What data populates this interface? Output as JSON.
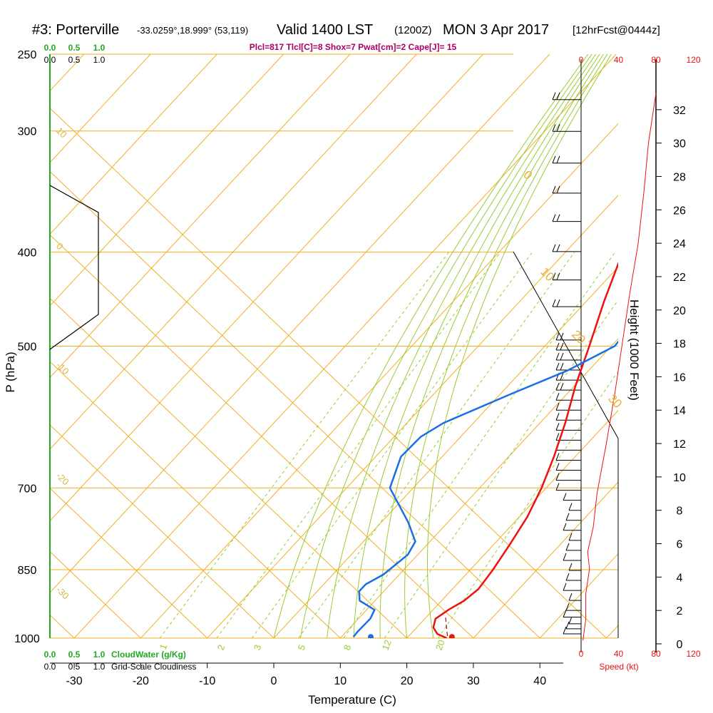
{
  "header": {
    "station": "#3: Porterville",
    "coords": "-33.0259°,18.999° (53,119)",
    "valid": "Valid 1400 LST",
    "zulu": "(1200Z)",
    "date": "MON 3 Apr 2017",
    "forecast": "[12hrFcst@0444z]",
    "params": "Plcl=817 Tlcl[C]=8 Shox=7 Pwat[cm]=2 Cape[J]= 15"
  },
  "colors": {
    "temperature": "#ee1111",
    "dewpoint": "#1a6ee8",
    "isotherm": "#f0b020",
    "mixing_ratio": "#99cc33",
    "cloud_water": "#22aa22",
    "wind_speed": "#ee1111",
    "cloudiness": "#000000"
  },
  "chart_data": {
    "type": "line",
    "chart_kind": "skew-T log-p sounding",
    "xlabel": "Temperature (C)",
    "ylabel": "P (hPa)",
    "xlim": [
      -34,
      46
    ],
    "ylim_hpa": [
      1000,
      250
    ],
    "log_pressure": true,
    "x_ticks": [
      "-30",
      "-20",
      "-10",
      "0",
      "10",
      "20",
      "30",
      "40"
    ],
    "pressure_ticks": [
      "250",
      "300",
      "400",
      "500",
      "700",
      "850",
      "1000"
    ],
    "isotherm_labels": [
      "10",
      "0",
      "-10",
      "-20",
      "-30",
      "0",
      "10",
      "20",
      "30"
    ],
    "mixing_ratio_labels": [
      "1",
      "2",
      "3",
      "5",
      "8",
      "12",
      "20"
    ],
    "series": [
      {
        "name": "temperature",
        "points": [
          [
            1000,
            26.0
          ],
          [
            990,
            24.0
          ],
          [
            975,
            22.5
          ],
          [
            955,
            21.6
          ],
          [
            935,
            22.3
          ],
          [
            915,
            23.4
          ],
          [
            890,
            23.9
          ],
          [
            850,
            23.4
          ],
          [
            800,
            22.4
          ],
          [
            750,
            21.2
          ],
          [
            700,
            19.3
          ],
          [
            650,
            16.8
          ],
          [
            600,
            13.8
          ],
          [
            550,
            10.2
          ],
          [
            500,
            6.7
          ],
          [
            450,
            2.7
          ],
          [
            400,
            -1.4
          ],
          [
            350,
            -6.2
          ],
          [
            300,
            -11.3
          ],
          [
            275,
            -14.5
          ],
          [
            265,
            -15.8
          ]
        ]
      },
      {
        "name": "dewpoint",
        "points": [
          [
            997,
            11.8
          ],
          [
            985,
            11.7
          ],
          [
            955,
            11.8
          ],
          [
            935,
            11.2
          ],
          [
            915,
            7.7
          ],
          [
            895,
            6.3
          ],
          [
            880,
            6.3
          ],
          [
            860,
            7.6
          ],
          [
            820,
            8.5
          ],
          [
            795,
            7.8
          ],
          [
            760,
            4.1
          ],
          [
            700,
            -3.5
          ],
          [
            650,
            -6.2
          ],
          [
            620,
            -6.0
          ],
          [
            600,
            -4.5
          ],
          [
            560,
            1.6
          ],
          [
            530,
            6.8
          ],
          [
            500,
            10.5
          ],
          [
            470,
            10.1
          ],
          [
            440,
            8.8
          ],
          [
            400,
            7.0
          ],
          [
            360,
            4.8
          ],
          [
            330,
            1.8
          ],
          [
            300,
            -0.8
          ],
          [
            275,
            -3.5
          ],
          [
            265,
            -5.0
          ]
        ]
      }
    ],
    "parcel_path": [
      [
        995,
        25.8
      ],
      [
        950,
        22.8
      ]
    ],
    "surface_temperature": 26.6,
    "surface_dewpoint": 14.4,
    "surface_pressure": 997,
    "height_axis": {
      "label": "Height (1000 Feet)",
      "ticks": [
        "0",
        "2",
        "4",
        "6",
        "8",
        "10",
        "12",
        "14",
        "16",
        "18",
        "20",
        "22",
        "24",
        "26",
        "28",
        "30",
        "32"
      ]
    },
    "wind_speed_axis": {
      "label": "Speed (kt)",
      "ticks": [
        "0",
        "40",
        "80",
        "120"
      ],
      "profile_ft_kt": [
        [
          200,
          2
        ],
        [
          1500,
          5
        ],
        [
          3000,
          5
        ],
        [
          4500,
          9
        ],
        [
          5500,
          7
        ],
        [
          7000,
          13
        ],
        [
          9000,
          17
        ],
        [
          12000,
          27
        ],
        [
          15000,
          36
        ],
        [
          18000,
          44
        ],
        [
          21000,
          52
        ],
        [
          24000,
          61
        ],
        [
          27000,
          67
        ],
        [
          30000,
          72
        ],
        [
          33000,
          80
        ]
      ]
    },
    "wind_barbs_ft": [
      600,
      900,
      1200,
      1600,
      2000,
      2600,
      3200,
      3800,
      4400,
      5000,
      5600,
      6200,
      6800,
      7400,
      8000,
      8600,
      9200,
      9800,
      10400,
      11000,
      11600,
      12200,
      12800,
      13400,
      14000,
      14600,
      15200,
      15800,
      16400,
      17000,
      17600,
      18200,
      20200,
      21800,
      23500,
      25300,
      27000,
      28800,
      30700,
      32600
    ],
    "cloudwater": {
      "label": "CloudWater (g/Kg)",
      "ticks": [
        "0.0",
        "0.5",
        "1.0"
      ]
    },
    "cloudiness": {
      "label": "Grid-Scale Cloudiness",
      "ticks": [
        "0.0",
        "0.5",
        "1.0"
      ],
      "profile": [
        [
          1000,
          0
        ],
        [
          500,
          0
        ],
        [
          455,
          0.74
        ],
        [
          366,
          0.74
        ],
        [
          345,
          0
        ]
      ]
    }
  }
}
